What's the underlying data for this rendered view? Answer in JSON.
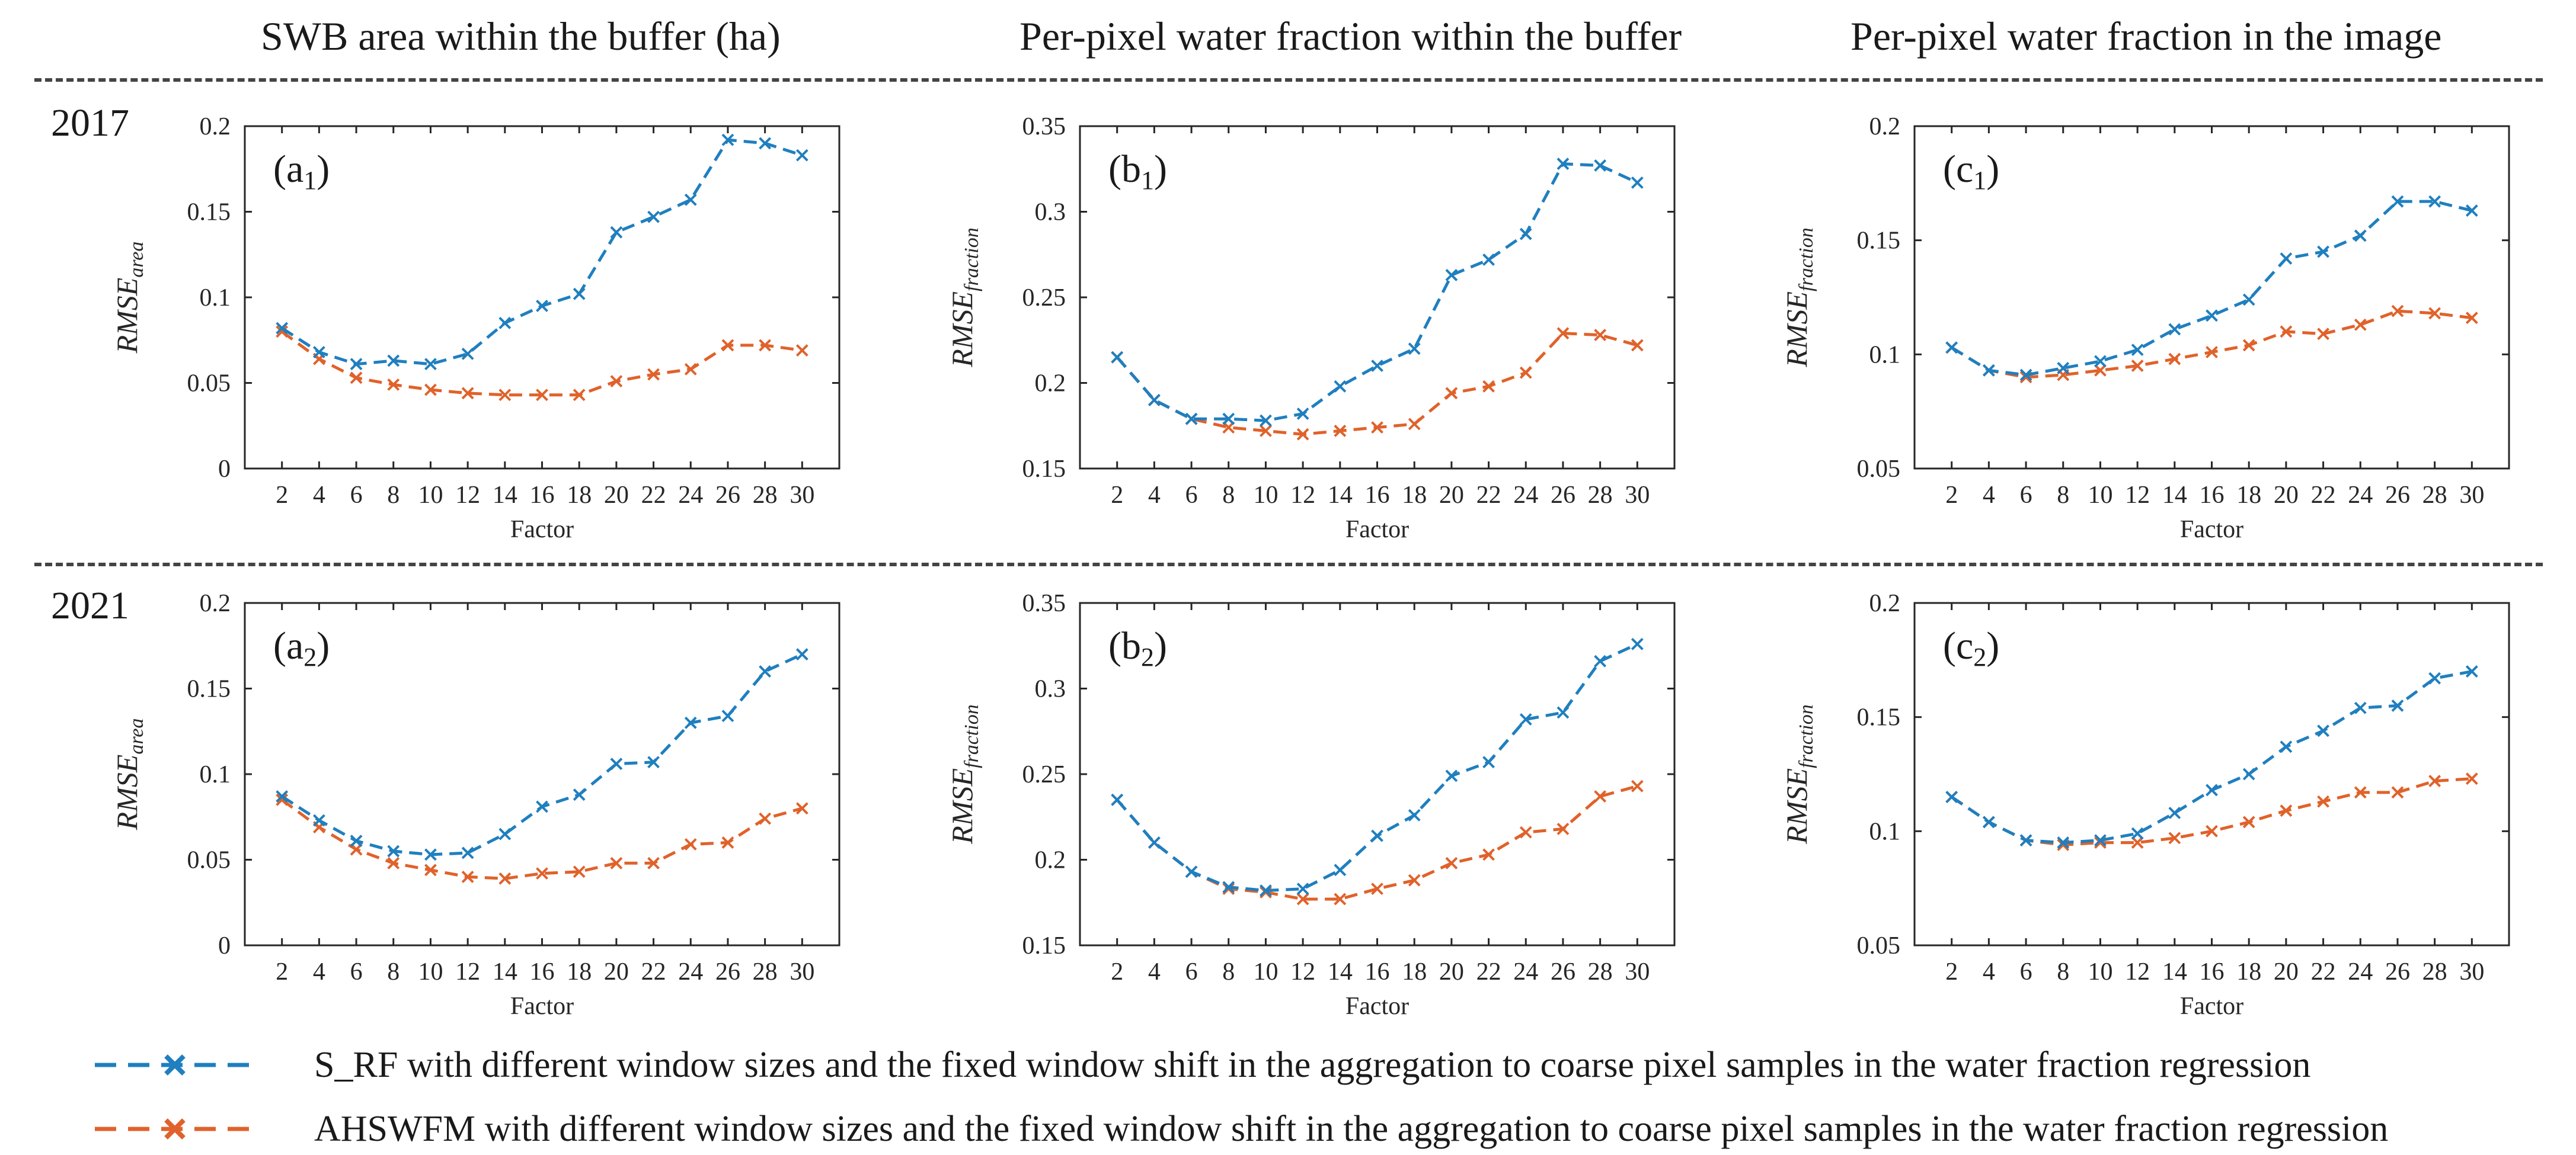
{
  "column_titles": [
    "SWB area within the buffer (ha)",
    "Per-pixel water fraction within the buffer",
    "Per-pixel water fraction in the image"
  ],
  "row_years": [
    "2017",
    "2021"
  ],
  "legend": [
    {
      "label": "S_RF with different window sizes and the fixed window shift in the aggregation to coarse pixel samples in the water fraction regression",
      "color": "#1f7fbf"
    },
    {
      "label": "AHSWFM with different window sizes and the fixed window shift in the aggregation to coarse pixel samples in the water fraction regression",
      "color": "#e0622a"
    }
  ],
  "colors": {
    "s_rf": "#1f7fbf",
    "ahswfm": "#e0622a"
  },
  "chart_data": [
    {
      "type": "line",
      "id": "a1",
      "panel_label": "a",
      "panel_sub": "1",
      "xlabel": "Factor",
      "ylabel": "RMSE",
      "ylabel_sub": "area",
      "categories": [
        2,
        4,
        6,
        8,
        10,
        12,
        14,
        16,
        18,
        20,
        22,
        24,
        26,
        28,
        30
      ],
      "ylim": [
        0,
        0.2
      ],
      "yticks": [
        0,
        0.05,
        0.1,
        0.15,
        0.2
      ],
      "ytick_labels": [
        "0",
        "0.05",
        "0.1",
        "0.15",
        "0.2"
      ],
      "series": [
        {
          "name": "S_RF",
          "values": [
            0.082,
            0.068,
            0.061,
            0.063,
            0.061,
            0.067,
            0.085,
            0.095,
            0.102,
            0.138,
            0.147,
            0.157,
            0.192,
            0.19,
            0.183
          ]
        },
        {
          "name": "AHSWFM",
          "values": [
            0.08,
            0.064,
            0.053,
            0.049,
            0.046,
            0.044,
            0.043,
            0.043,
            0.043,
            0.051,
            0.055,
            0.058,
            0.072,
            0.072,
            0.069
          ]
        }
      ]
    },
    {
      "type": "line",
      "id": "b1",
      "panel_label": "b",
      "panel_sub": "1",
      "xlabel": "Factor",
      "ylabel": "RMSE",
      "ylabel_sub": "fraction",
      "categories": [
        2,
        4,
        6,
        8,
        10,
        12,
        14,
        16,
        18,
        20,
        22,
        24,
        26,
        28,
        30
      ],
      "ylim": [
        0.15,
        0.35
      ],
      "yticks": [
        0.15,
        0.2,
        0.25,
        0.3,
        0.35
      ],
      "ytick_labels": [
        "0.15",
        "0.2",
        "0.25",
        "0.3",
        "0.35"
      ],
      "series": [
        {
          "name": "S_RF",
          "values": [
            0.215,
            0.19,
            0.179,
            0.179,
            0.178,
            0.182,
            0.198,
            0.21,
            0.22,
            0.263,
            0.272,
            0.287,
            0.328,
            0.327,
            0.317
          ]
        },
        {
          "name": "AHSWFM",
          "values": [
            0.215,
            0.19,
            0.179,
            0.174,
            0.172,
            0.17,
            0.172,
            0.174,
            0.176,
            0.194,
            0.198,
            0.206,
            0.229,
            0.228,
            0.222
          ]
        }
      ]
    },
    {
      "type": "line",
      "id": "c1",
      "panel_label": "c",
      "panel_sub": "1",
      "xlabel": "Factor",
      "ylabel": "RMSE",
      "ylabel_sub": "fraction",
      "categories": [
        2,
        4,
        6,
        8,
        10,
        12,
        14,
        16,
        18,
        20,
        22,
        24,
        26,
        28,
        30
      ],
      "ylim": [
        0.05,
        0.2
      ],
      "yticks": [
        0.05,
        0.1,
        0.15,
        0.2
      ],
      "ytick_labels": [
        "0.05",
        "0.1",
        "0.15",
        "0.2"
      ],
      "series": [
        {
          "name": "S_RF",
          "values": [
            0.103,
            0.093,
            0.091,
            0.094,
            0.097,
            0.102,
            0.111,
            0.117,
            0.124,
            0.142,
            0.145,
            0.152,
            0.167,
            0.167,
            0.163
          ]
        },
        {
          "name": "AHSWFM",
          "values": [
            0.103,
            0.093,
            0.09,
            0.091,
            0.093,
            0.095,
            0.098,
            0.101,
            0.104,
            0.11,
            0.109,
            0.113,
            0.119,
            0.118,
            0.116
          ]
        }
      ]
    },
    {
      "type": "line",
      "id": "a2",
      "panel_label": "a",
      "panel_sub": "2",
      "xlabel": "Factor",
      "ylabel": "RMSE",
      "ylabel_sub": "area",
      "categories": [
        2,
        4,
        6,
        8,
        10,
        12,
        14,
        16,
        18,
        20,
        22,
        24,
        26,
        28,
        30
      ],
      "ylim": [
        0,
        0.2
      ],
      "yticks": [
        0,
        0.05,
        0.1,
        0.15,
        0.2
      ],
      "ytick_labels": [
        "0",
        "0.05",
        "0.1",
        "0.15",
        "0.2"
      ],
      "series": [
        {
          "name": "S_RF",
          "values": [
            0.087,
            0.073,
            0.061,
            0.055,
            0.053,
            0.054,
            0.065,
            0.081,
            0.088,
            0.106,
            0.107,
            0.13,
            0.134,
            0.16,
            0.17
          ]
        },
        {
          "name": "AHSWFM",
          "values": [
            0.085,
            0.069,
            0.056,
            0.048,
            0.044,
            0.04,
            0.039,
            0.042,
            0.043,
            0.048,
            0.048,
            0.059,
            0.06,
            0.074,
            0.08
          ]
        }
      ]
    },
    {
      "type": "line",
      "id": "b2",
      "panel_label": "b",
      "panel_sub": "2",
      "xlabel": "Factor",
      "ylabel": "RMSE",
      "ylabel_sub": "fraction",
      "categories": [
        2,
        4,
        6,
        8,
        10,
        12,
        14,
        16,
        18,
        20,
        22,
        24,
        26,
        28,
        30
      ],
      "ylim": [
        0.15,
        0.35
      ],
      "yticks": [
        0.15,
        0.2,
        0.25,
        0.3,
        0.35
      ],
      "ytick_labels": [
        "0.15",
        "0.2",
        "0.25",
        "0.3",
        "0.35"
      ],
      "series": [
        {
          "name": "S_RF",
          "values": [
            0.235,
            0.21,
            0.193,
            0.184,
            0.182,
            0.183,
            0.194,
            0.214,
            0.226,
            0.249,
            0.257,
            0.282,
            0.286,
            0.316,
            0.326
          ]
        },
        {
          "name": "AHSWFM",
          "values": [
            0.235,
            0.21,
            0.193,
            0.183,
            0.181,
            0.177,
            0.177,
            0.183,
            0.188,
            0.198,
            0.203,
            0.216,
            0.218,
            0.237,
            0.243
          ]
        }
      ]
    },
    {
      "type": "line",
      "id": "c2",
      "panel_label": "c",
      "panel_sub": "2",
      "xlabel": "Factor",
      "ylabel": "RMSE",
      "ylabel_sub": "fraction",
      "categories": [
        2,
        4,
        6,
        8,
        10,
        12,
        14,
        16,
        18,
        20,
        22,
        24,
        26,
        28,
        30
      ],
      "ylim": [
        0.05,
        0.2
      ],
      "yticks": [
        0.05,
        0.1,
        0.15,
        0.2
      ],
      "ytick_labels": [
        "0.05",
        "0.1",
        "0.15",
        "0.2"
      ],
      "series": [
        {
          "name": "S_RF",
          "values": [
            0.115,
            0.104,
            0.096,
            0.095,
            0.096,
            0.099,
            0.108,
            0.118,
            0.125,
            0.137,
            0.144,
            0.154,
            0.155,
            0.167,
            0.17
          ]
        },
        {
          "name": "AHSWFM",
          "values": [
            0.115,
            0.104,
            0.096,
            0.094,
            0.095,
            0.095,
            0.097,
            0.1,
            0.104,
            0.109,
            0.113,
            0.117,
            0.117,
            0.122,
            0.123
          ]
        }
      ]
    }
  ]
}
